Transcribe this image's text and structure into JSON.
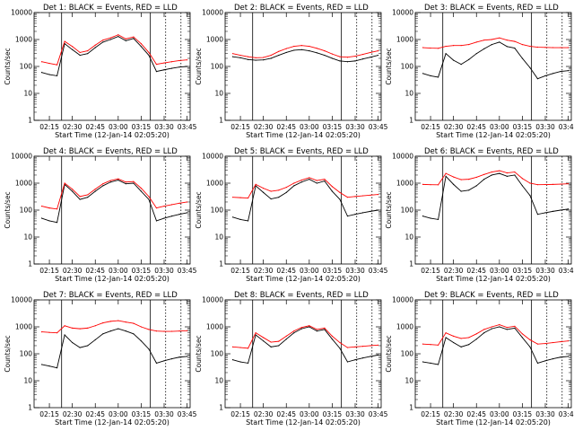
{
  "figure": {
    "x_tick_labels": [
      "02:15",
      "02:30",
      "02:45",
      "03:00",
      "03:15",
      "03:30",
      "03:45"
    ],
    "y_tick_labels": [
      "1",
      "10",
      "100",
      "1000",
      "10000"
    ],
    "ylabel": "Counts/sec",
    "xlabel": "Start Time (12-Jan-14 02:05:20)",
    "series_colors": {
      "events": "#000000",
      "lld": "#ff0000"
    }
  },
  "chart_data": [
    {
      "type": "line",
      "title": "Det 1: BLACK = Events, RED = LLD",
      "xlabel": "Start Time (12-Jan-14 02:05:20)",
      "ylabel": "Counts/sec",
      "yscale": "log",
      "ylim": [
        1,
        10000
      ],
      "x": [
        "02:10",
        "02:15",
        "02:20",
        "02:25",
        "02:30",
        "02:35",
        "02:40",
        "02:45",
        "02:50",
        "02:55",
        "03:00",
        "03:05",
        "03:10",
        "03:15",
        "03:20",
        "03:25",
        "03:30",
        "03:35",
        "03:40",
        "03:45"
      ],
      "series": [
        {
          "values": [
            60,
            50,
            45,
            700,
            420,
            260,
            300,
            500,
            800,
            1000,
            1300,
            900,
            1100,
            550,
            260,
            65,
            75,
            85,
            95,
            100
          ]
        },
        {
          "values": [
            150,
            130,
            115,
            850,
            550,
            330,
            380,
            620,
            950,
            1150,
            1500,
            1050,
            1250,
            700,
            330,
            120,
            135,
            150,
            165,
            175
          ]
        }
      ]
    },
    {
      "type": "line",
      "title": "Det 2: BLACK = Events, RED = LLD",
      "xlabel": "Start Time (12-Jan-14 02:05:20)",
      "ylabel": "Counts/sec",
      "yscale": "log",
      "ylim": [
        1,
        10000
      ],
      "x": [
        "02:10",
        "02:15",
        "02:20",
        "02:25",
        "02:30",
        "02:35",
        "02:40",
        "02:45",
        "02:50",
        "02:55",
        "03:00",
        "03:05",
        "03:10",
        "03:15",
        "03:20",
        "03:25",
        "03:30",
        "03:35",
        "03:40",
        "03:45"
      ],
      "series": [
        {
          "values": [
            230,
            210,
            180,
            170,
            175,
            200,
            260,
            330,
            400,
            420,
            380,
            320,
            260,
            200,
            160,
            150,
            160,
            190,
            220,
            260
          ]
        },
        {
          "values": [
            300,
            260,
            230,
            210,
            215,
            260,
            360,
            460,
            560,
            600,
            560,
            470,
            380,
            290,
            230,
            220,
            240,
            280,
            330,
            380
          ]
        }
      ]
    },
    {
      "type": "line",
      "title": "Det 3: BLACK = Events, RED = LLD",
      "xlabel": "Start Time (12-Jan-14 02:05:20)",
      "ylabel": "Counts/sec",
      "yscale": "log",
      "ylim": [
        1,
        10000
      ],
      "x": [
        "02:10",
        "02:15",
        "02:20",
        "02:25",
        "02:30",
        "02:35",
        "02:40",
        "02:45",
        "02:50",
        "02:55",
        "03:00",
        "03:05",
        "03:10",
        "03:15",
        "03:20",
        "03:25",
        "03:30",
        "03:35",
        "03:40",
        "03:45"
      ],
      "series": [
        {
          "values": [
            55,
            45,
            40,
            300,
            170,
            120,
            180,
            300,
            450,
            650,
            800,
            550,
            480,
            200,
            90,
            35,
            45,
            55,
            65,
            70
          ]
        },
        {
          "values": [
            500,
            480,
            470,
            560,
            600,
            600,
            650,
            800,
            950,
            1000,
            1150,
            950,
            850,
            650,
            560,
            520,
            510,
            500,
            500,
            500
          ]
        }
      ]
    },
    {
      "type": "line",
      "title": "Det 4: BLACK = Events, RED = LLD",
      "xlabel": "Start Time (12-Jan-14 02:05:20)",
      "ylabel": "Counts/sec",
      "yscale": "log",
      "ylim": [
        1,
        10000
      ],
      "x": [
        "02:10",
        "02:15",
        "02:20",
        "02:25",
        "02:30",
        "02:35",
        "02:40",
        "02:45",
        "02:50",
        "02:55",
        "03:00",
        "03:05",
        "03:10",
        "03:15",
        "03:20",
        "03:25",
        "03:30",
        "03:35",
        "03:40",
        "03:45"
      ],
      "series": [
        {
          "values": [
            50,
            40,
            35,
            900,
            500,
            250,
            300,
            500,
            800,
            1100,
            1300,
            950,
            1000,
            500,
            250,
            40,
            50,
            60,
            70,
            80
          ]
        },
        {
          "values": [
            140,
            120,
            110,
            1000,
            600,
            320,
            370,
            600,
            950,
            1250,
            1450,
            1100,
            1150,
            650,
            320,
            120,
            140,
            160,
            180,
            200
          ]
        }
      ]
    },
    {
      "type": "line",
      "title": "Det 5: BLACK = Events, RED = LLD",
      "xlabel": "Start Time (12-Jan-14 02:05:20)",
      "ylabel": "Counts/sec",
      "yscale": "log",
      "ylim": [
        1,
        10000
      ],
      "x": [
        "02:10",
        "02:15",
        "02:20",
        "02:25",
        "02:30",
        "02:35",
        "02:40",
        "02:45",
        "02:50",
        "02:55",
        "03:00",
        "03:05",
        "03:10",
        "03:15",
        "03:20",
        "03:25",
        "03:30",
        "03:35",
        "03:40",
        "03:45"
      ],
      "series": [
        {
          "values": [
            55,
            45,
            40,
            800,
            450,
            260,
            300,
            450,
            800,
            1100,
            1400,
            1000,
            1200,
            500,
            250,
            60,
            70,
            80,
            90,
            100
          ]
        },
        {
          "values": [
            300,
            290,
            280,
            900,
            650,
            500,
            550,
            700,
            1000,
            1300,
            1600,
            1250,
            1400,
            750,
            450,
            300,
            320,
            340,
            360,
            380
          ]
        }
      ]
    },
    {
      "type": "line",
      "title": "Det 6: BLACK = Events, RED = LLD",
      "xlabel": "Start Time (12-Jan-14 02:05:20)",
      "ylabel": "Counts/sec",
      "yscale": "log",
      "ylim": [
        1,
        10000
      ],
      "x": [
        "02:10",
        "02:15",
        "02:20",
        "02:25",
        "02:30",
        "02:35",
        "02:40",
        "02:45",
        "02:50",
        "02:55",
        "03:00",
        "03:05",
        "03:10",
        "03:15",
        "03:20",
        "03:25",
        "03:30",
        "03:35",
        "03:40",
        "03:45"
      ],
      "series": [
        {
          "values": [
            60,
            50,
            45,
            1800,
            900,
            500,
            550,
            800,
            1400,
            2000,
            2300,
            1800,
            2000,
            800,
            350,
            70,
            80,
            90,
            100,
            110
          ]
        },
        {
          "values": [
            900,
            880,
            870,
            2300,
            1700,
            1350,
            1400,
            1650,
            2100,
            2600,
            2900,
            2400,
            2600,
            1500,
            1000,
            880,
            890,
            900,
            920,
            950
          ]
        }
      ]
    },
    {
      "type": "line",
      "title": "Det 7: BLACK = Events, RED = LLD",
      "xlabel": "Start Time (12-Jan-14 02:05:20)",
      "ylabel": "Counts/sec",
      "yscale": "log",
      "ylim": [
        1,
        10000
      ],
      "x": [
        "02:10",
        "02:15",
        "02:20",
        "02:25",
        "02:30",
        "02:35",
        "02:40",
        "02:45",
        "02:50",
        "02:55",
        "03:00",
        "03:05",
        "03:10",
        "03:15",
        "03:20",
        "03:25",
        "03:30",
        "03:35",
        "03:40",
        "03:45"
      ],
      "series": [
        {
          "values": [
            40,
            35,
            30,
            500,
            260,
            170,
            200,
            330,
            550,
            700,
            850,
            700,
            550,
            300,
            150,
            45,
            55,
            65,
            75,
            80
          ]
        },
        {
          "values": [
            650,
            620,
            600,
            1100,
            900,
            850,
            900,
            1100,
            1400,
            1600,
            1700,
            1500,
            1350,
            1000,
            800,
            700,
            680,
            680,
            700,
            720
          ]
        }
      ]
    },
    {
      "type": "line",
      "title": "Det 8: BLACK = Events, RED = LLD",
      "xlabel": "Start Time (12-Jan-14 02:05:20)",
      "ylabel": "Counts/sec",
      "yscale": "log",
      "ylim": [
        1,
        10000
      ],
      "x": [
        "02:10",
        "02:15",
        "02:20",
        "02:25",
        "02:30",
        "02:35",
        "02:40",
        "02:45",
        "02:50",
        "02:55",
        "03:00",
        "03:05",
        "03:10",
        "03:15",
        "03:20",
        "03:25",
        "03:30",
        "03:35",
        "03:40",
        "03:45"
      ],
      "series": [
        {
          "values": [
            60,
            50,
            45,
            500,
            300,
            180,
            200,
            350,
            600,
            850,
            1000,
            700,
            800,
            350,
            160,
            50,
            60,
            70,
            80,
            90
          ]
        },
        {
          "values": [
            180,
            170,
            160,
            600,
            400,
            270,
            290,
            450,
            700,
            950,
            1100,
            800,
            900,
            450,
            260,
            170,
            180,
            190,
            200,
            210
          ]
        }
      ]
    },
    {
      "type": "line",
      "title": "Det 9: BLACK = Events, RED = LLD",
      "xlabel": "Start Time (12-Jan-14 02:05:20)",
      "ylabel": "Counts/sec",
      "yscale": "log",
      "ylim": [
        1,
        10000
      ],
      "x": [
        "02:10",
        "02:15",
        "02:20",
        "02:25",
        "02:30",
        "02:35",
        "02:40",
        "02:45",
        "02:50",
        "02:55",
        "03:00",
        "03:05",
        "03:10",
        "03:15",
        "03:20",
        "03:25",
        "03:30",
        "03:35",
        "03:40",
        "03:45"
      ],
      "series": [
        {
          "values": [
            50,
            45,
            40,
            400,
            260,
            180,
            220,
            350,
            600,
            850,
            1000,
            800,
            900,
            400,
            180,
            45,
            55,
            65,
            75,
            80
          ]
        },
        {
          "values": [
            230,
            220,
            210,
            600,
            450,
            370,
            400,
            550,
            800,
            1000,
            1200,
            950,
            1050,
            550,
            330,
            230,
            240,
            260,
            280,
            300
          ]
        }
      ]
    }
  ]
}
